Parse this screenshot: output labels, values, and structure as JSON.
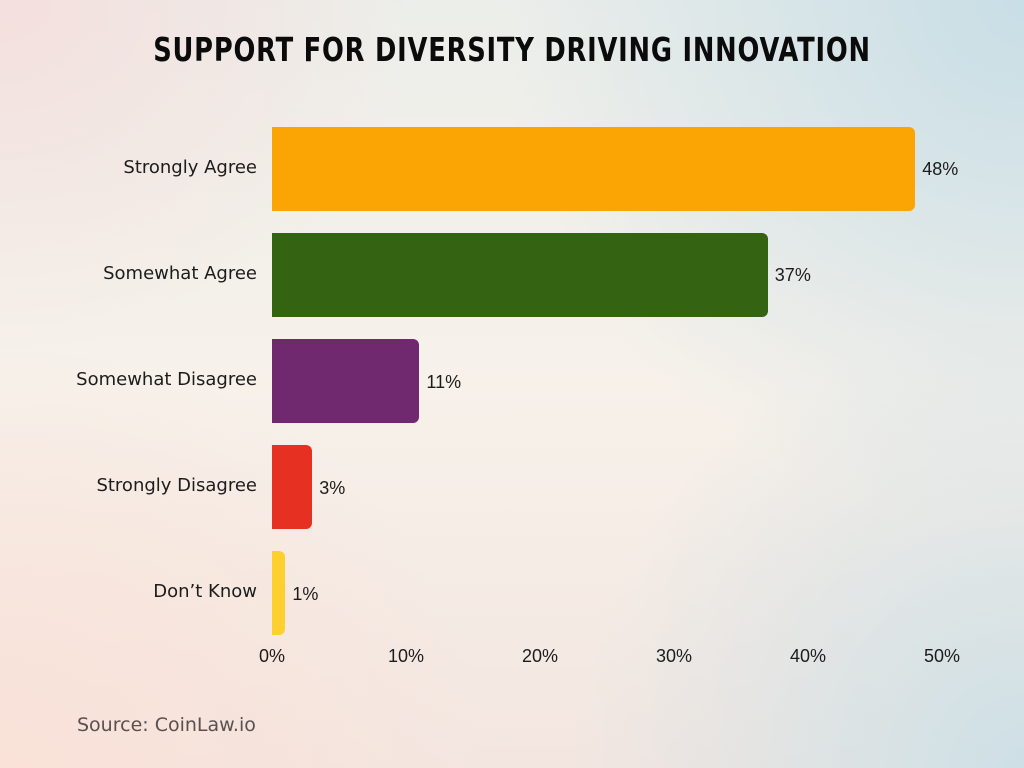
{
  "title": "Support for Diversity Driving Innovation",
  "source": "Source: CoinLaw.io",
  "rows": [
    {
      "label": "Strongly Agree",
      "value": 48,
      "value_label": "48%",
      "color": "#fba505"
    },
    {
      "label": "Somewhat Agree",
      "value": 37,
      "value_label": "37%",
      "color": "#346311"
    },
    {
      "label": "Somewhat Disagree",
      "value": 11,
      "value_label": "11%",
      "color": "#70286e"
    },
    {
      "label": "Strongly Disagree",
      "value": 3,
      "value_label": "3%",
      "color": "#e63122"
    },
    {
      "label": "Don’t Know",
      "value": 1,
      "value_label": "1%",
      "color": "#fdd02f"
    }
  ],
  "x_ticks": [
    "0%",
    "10%",
    "20%",
    "30%",
    "40%",
    "50%"
  ],
  "chart_data": {
    "type": "bar",
    "orientation": "horizontal",
    "title": "Support for Diversity Driving Innovation",
    "categories": [
      "Strongly Agree",
      "Somewhat Agree",
      "Somewhat Disagree",
      "Strongly Disagree",
      "Don’t Know"
    ],
    "values": [
      48,
      37,
      11,
      3,
      1
    ],
    "data_labels": [
      "48%",
      "37%",
      "11%",
      "3%",
      "1%"
    ],
    "colors": [
      "#fba505",
      "#346311",
      "#70286e",
      "#e63122",
      "#fdd02f"
    ],
    "xlabel": "",
    "ylabel": "",
    "xlim": [
      0,
      50
    ],
    "x_ticks": [
      0,
      10,
      20,
      30,
      40,
      50
    ],
    "x_tick_labels": [
      "0%",
      "10%",
      "20%",
      "30%",
      "40%",
      "50%"
    ],
    "grid": false,
    "legend": "none",
    "source": "Source: CoinLaw.io"
  }
}
